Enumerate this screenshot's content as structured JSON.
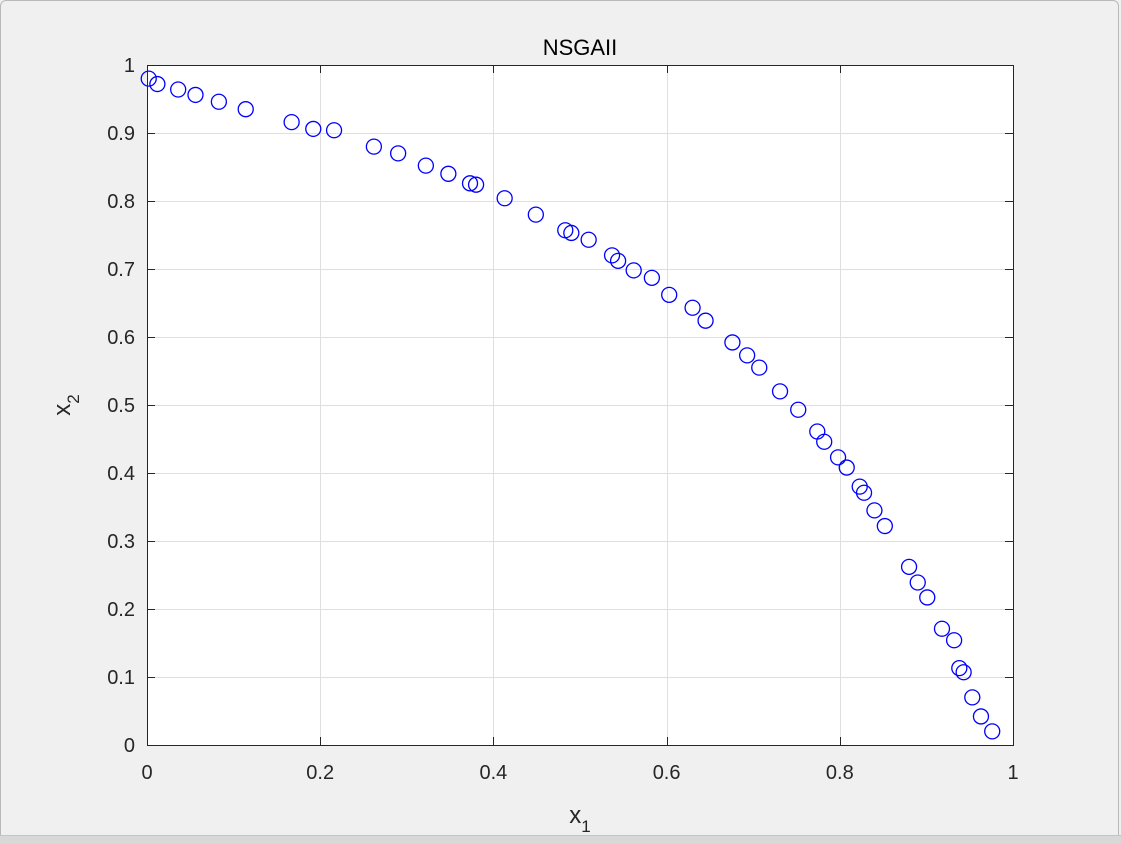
{
  "window": {
    "background": "#f0f0f0"
  },
  "chart_data": {
    "type": "scatter",
    "title": "NSGAII",
    "xlabel_main": "x",
    "xlabel_sub": "1",
    "ylabel_main": "x",
    "ylabel_sub": "2",
    "xlim": [
      0,
      1
    ],
    "ylim": [
      0,
      1
    ],
    "xticks": [
      0,
      0.2,
      0.4,
      0.6,
      0.8,
      1
    ],
    "xtick_labels": [
      "0",
      "0.2",
      "0.4",
      "0.6",
      "0.8",
      "1"
    ],
    "yticks": [
      0,
      0.1,
      0.2,
      0.3,
      0.4,
      0.5,
      0.6,
      0.7,
      0.8,
      0.9,
      1
    ],
    "ytick_labels": [
      "0",
      "0.1",
      "0.2",
      "0.3",
      "0.4",
      "0.5",
      "0.6",
      "0.7",
      "0.8",
      "0.9",
      "1"
    ],
    "grid": true,
    "marker": "circle-open",
    "marker_color": "#0000ff",
    "plot_background": "#ffffff",
    "grid_color": "#dfdfdf",
    "x": [
      0.002,
      0.012,
      0.036,
      0.056,
      0.083,
      0.114,
      0.167,
      0.192,
      0.216,
      0.262,
      0.29,
      0.322,
      0.348,
      0.373,
      0.38,
      0.413,
      0.449,
      0.483,
      0.49,
      0.51,
      0.537,
      0.544,
      0.562,
      0.583,
      0.603,
      0.63,
      0.645,
      0.676,
      0.693,
      0.707,
      0.731,
      0.752,
      0.774,
      0.782,
      0.798,
      0.808,
      0.823,
      0.828,
      0.84,
      0.852,
      0.88,
      0.89,
      0.901,
      0.918,
      0.932,
      0.938,
      0.943,
      0.953,
      0.963,
      0.976
    ],
    "y": [
      0.98,
      0.972,
      0.964,
      0.956,
      0.946,
      0.935,
      0.916,
      0.906,
      0.904,
      0.88,
      0.87,
      0.852,
      0.84,
      0.826,
      0.824,
      0.804,
      0.78,
      0.757,
      0.753,
      0.743,
      0.72,
      0.712,
      0.698,
      0.687,
      0.662,
      0.643,
      0.624,
      0.592,
      0.573,
      0.555,
      0.52,
      0.493,
      0.461,
      0.446,
      0.423,
      0.408,
      0.38,
      0.371,
      0.345,
      0.322,
      0.262,
      0.239,
      0.217,
      0.171,
      0.154,
      0.113,
      0.107,
      0.07,
      0.042,
      0.02
    ]
  }
}
